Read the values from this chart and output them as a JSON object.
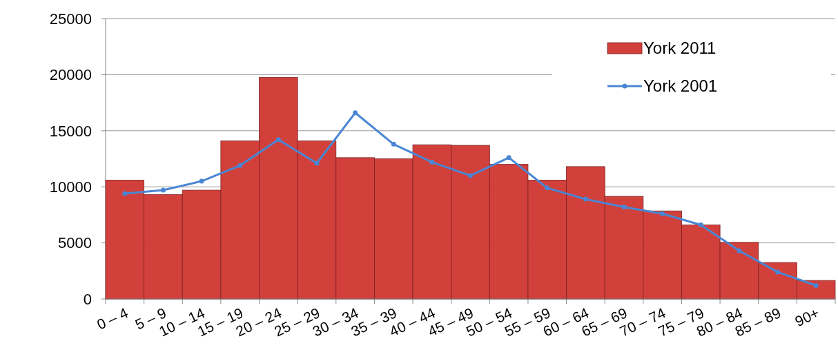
{
  "chart_data": {
    "type": "bar",
    "categories": [
      "0 – 4",
      "5 – 9",
      "10 – 14",
      "15 – 19",
      "20 – 24",
      "25 – 29",
      "30 – 34",
      "35 – 39",
      "40 – 44",
      "45 – 49",
      "50 – 54",
      "55 – 59",
      "60 – 64",
      "65 – 69",
      "70 – 74",
      "75 – 79",
      "80 – 84",
      "85 – 89",
      "90+"
    ],
    "series": [
      {
        "name": "York 2011",
        "color": "#d2403c",
        "values": [
          10600,
          9300,
          9700,
          14100,
          19750,
          14100,
          12600,
          12500,
          13750,
          13700,
          12000,
          10600,
          11800,
          9150,
          7850,
          6600,
          5050,
          3250,
          1650
        ]
      },
      {
        "name": "York 2001",
        "type": "line",
        "color": "#4a86d4",
        "values": [
          9400,
          9700,
          10500,
          11900,
          14200,
          12100,
          16600,
          13800,
          12200,
          11000,
          12600,
          9900,
          8900,
          8200,
          7600,
          6600,
          4300,
          2400,
          1200
        ]
      }
    ],
    "ylim": [
      0,
      25000
    ],
    "yticks": [
      0,
      5000,
      10000,
      15000,
      20000,
      25000
    ],
    "grid": "y",
    "legend": "top right",
    "marker": "circle"
  }
}
